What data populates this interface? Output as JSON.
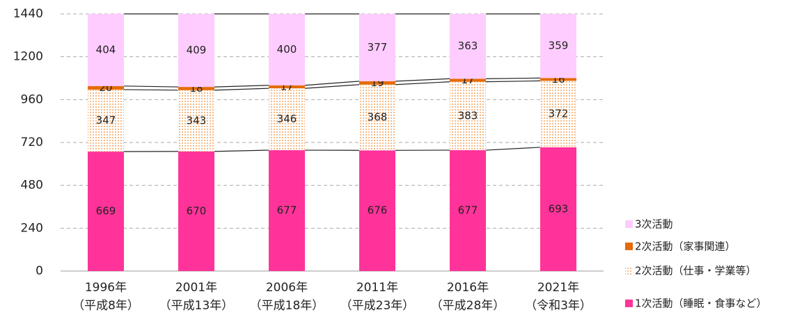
{
  "chart_data": {
    "type": "stacked_bar",
    "categories": [
      [
        "1996年",
        "（平成8年）"
      ],
      [
        "2001年",
        "（平成13年）"
      ],
      [
        "2006年",
        "（平成18年）"
      ],
      [
        "2011年",
        "（平成23年）"
      ],
      [
        "2016年",
        "（平成28年）"
      ],
      [
        "2021年",
        "（令和3年）"
      ]
    ],
    "series": [
      {
        "name": "1次活動（睡眠・食事など）",
        "color": "#ff3399",
        "values": [
          669,
          670,
          677,
          676,
          677,
          693
        ]
      },
      {
        "name": "2次活動（仕事・学業等）",
        "color": "#f4a460",
        "pattern": "dotted",
        "values": [
          347,
          343,
          346,
          368,
          383,
          372
        ]
      },
      {
        "name": "2次活動（家事関連）",
        "color": "#e46c0a",
        "values": [
          20,
          18,
          17,
          19,
          17,
          16
        ]
      },
      {
        "name": "3次活動",
        "color": "#ffccff",
        "values": [
          404,
          409,
          400,
          377,
          363,
          359
        ]
      }
    ],
    "ylim": [
      0,
      1440
    ],
    "yticks": [
      0,
      240,
      480,
      720,
      960,
      1200,
      1440
    ],
    "grid": true,
    "legend": "right"
  }
}
